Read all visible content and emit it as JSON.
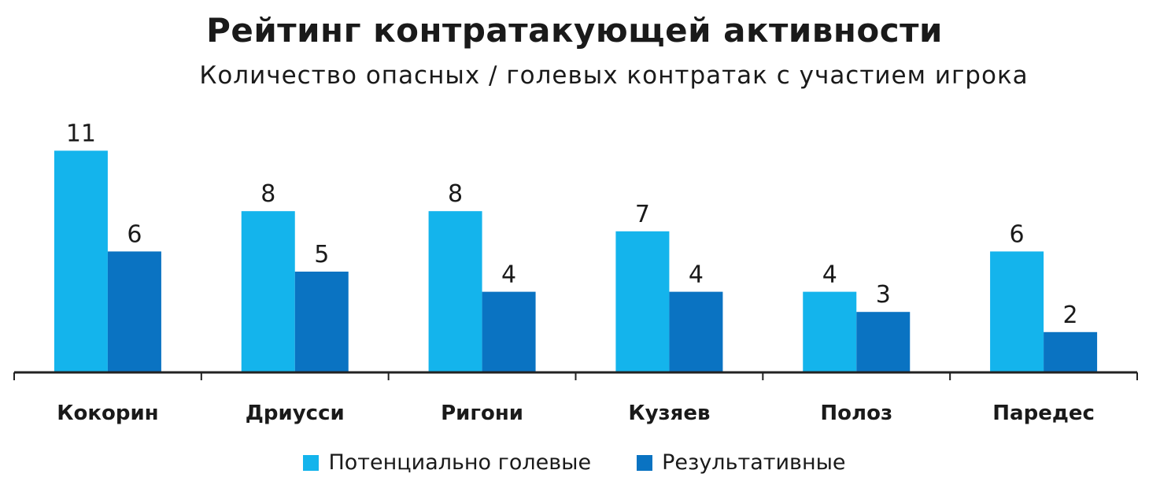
{
  "chart_data": {
    "type": "bar",
    "title": "Рейтинг контратакующей активности",
    "subtitle": "Количество опасных / голевых контратак с участием игрока",
    "categories": [
      "Кокорин",
      "Дриусси",
      "Ригони",
      "Кузяев",
      "Полоз",
      "Паредес"
    ],
    "series": [
      {
        "name": "Потенциально голевые",
        "color": "#14b4ec",
        "values": [
          11,
          8,
          8,
          7,
          4,
          6
        ]
      },
      {
        "name": "Результативные",
        "color": "#0a73c2",
        "values": [
          6,
          5,
          4,
          4,
          3,
          2
        ]
      }
    ],
    "ylim": [
      0,
      11
    ],
    "grid": false,
    "legend_position": "bottom"
  }
}
